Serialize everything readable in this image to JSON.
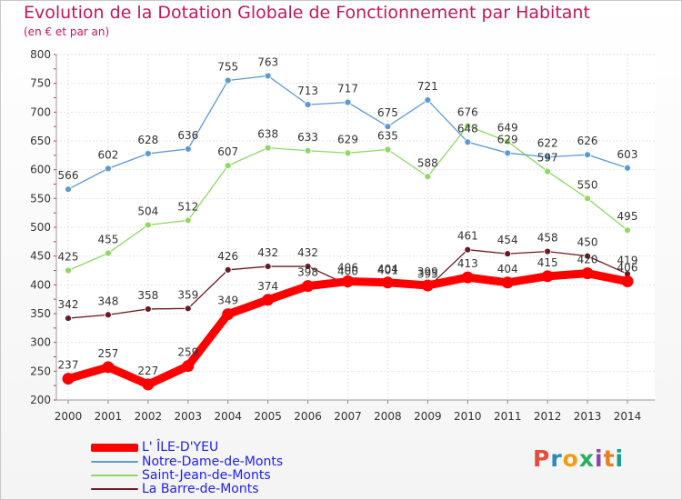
{
  "title": "Evolution de la Dotation Globale de Fonctionnement par Habitant",
  "subtitle": "(en € et par an)",
  "logo": {
    "text": "Proxiti",
    "colors": [
      "#e84c3d",
      "#2e86c1",
      "#f39c12",
      "#27ae60",
      "#8e44ad",
      "#e67e22",
      "#16a085"
    ]
  },
  "chart_data": {
    "type": "line",
    "title": "Evolution de la Dotation Globale de Fonctionnement par Habitant",
    "subtitle": "(en € et par an)",
    "x": [
      "2000",
      "2001",
      "2002",
      "2003",
      "2004",
      "2005",
      "2006",
      "2007",
      "2008",
      "2009",
      "2010",
      "2011",
      "2012",
      "2013",
      "2014"
    ],
    "ylim": [
      200,
      800
    ],
    "yticks": [
      200,
      250,
      300,
      350,
      400,
      450,
      500,
      550,
      600,
      650,
      700,
      750,
      800
    ],
    "grid": true,
    "legend_position": "bottom-left",
    "series": [
      {
        "name": "La Barre-de-Monts",
        "color": "#6b1a22",
        "values": [
          342,
          348,
          358,
          359,
          426,
          432,
          432,
          400,
          401,
          395,
          461,
          454,
          458,
          450,
          419
        ]
      },
      {
        "name": "Saint-Jean-de-Monts",
        "color": "#90d862",
        "values": [
          425,
          455,
          504,
          512,
          607,
          638,
          633,
          629,
          635,
          588,
          676,
          649,
          597,
          550,
          495
        ]
      },
      {
        "name": "Notre-Dame-de-Monts",
        "color": "#5b9bd5",
        "values": [
          566,
          602,
          628,
          636,
          755,
          763,
          713,
          717,
          675,
          721,
          648,
          629,
          622,
          626,
          603
        ]
      },
      {
        "name": "L' ÎLE-D'YEU",
        "color": "#ff0000",
        "values": [
          237,
          257,
          227,
          259,
          349,
          374,
          398,
          406,
          404,
          399,
          413,
          404,
          415,
          420,
          406
        ]
      }
    ],
    "legend_order": [
      "L' ÎLE-D'YEU",
      "Notre-Dame-de-Monts",
      "Saint-Jean-de-Monts",
      "La Barre-de-Monts"
    ]
  }
}
